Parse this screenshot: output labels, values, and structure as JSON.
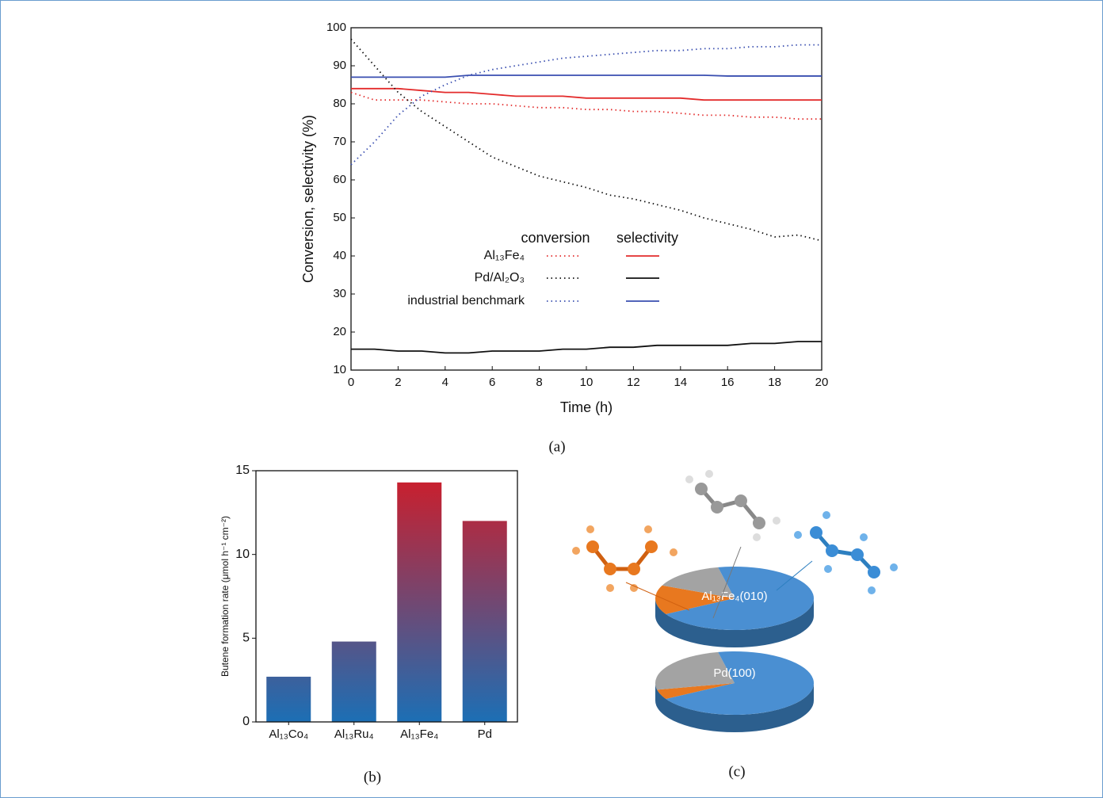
{
  "chart_data": [
    {
      "type": "line",
      "caption": "(a)",
      "x_label": "Time (h)",
      "y_label": "Conversion, selectivity (%)",
      "x": [
        0,
        1,
        2,
        3,
        4,
        5,
        6,
        7,
        8,
        9,
        10,
        11,
        12,
        13,
        14,
        15,
        16,
        17,
        18,
        19,
        20
      ],
      "xlim": [
        0,
        20
      ],
      "xticks": [
        0,
        2,
        4,
        6,
        8,
        10,
        12,
        14,
        16,
        18,
        20
      ],
      "ylim": [
        10,
        100
      ],
      "yticks": [
        10,
        20,
        30,
        40,
        50,
        60,
        70,
        80,
        90,
        100
      ],
      "legend_columns": [
        "conversion",
        "selectivity"
      ],
      "series": [
        {
          "name": "Al₁₃Fe₄",
          "color": "#e32b2b",
          "conversion": [
            83,
            81,
            81,
            81,
            80.5,
            80,
            80,
            79.5,
            79,
            79,
            78.5,
            78.5,
            78,
            78,
            77.5,
            77,
            77,
            76.5,
            76.5,
            76,
            76
          ],
          "selectivity": [
            84,
            84,
            84,
            83.5,
            83,
            83,
            82.5,
            82,
            82,
            82,
            81.5,
            81.5,
            81.5,
            81.5,
            81.5,
            81,
            81,
            81,
            81,
            81,
            81
          ]
        },
        {
          "name": "Pd/Al₂O₃",
          "color": "#111111",
          "conversion": [
            97,
            90,
            83,
            78,
            74,
            70,
            66,
            63.5,
            61,
            59.5,
            58,
            56,
            55,
            53.5,
            52,
            50,
            48.5,
            47,
            45,
            45.5,
            44
          ],
          "selectivity": [
            15.5,
            15.5,
            15,
            15,
            14.5,
            14.5,
            15,
            15,
            15,
            15.5,
            15.5,
            16,
            16,
            16.5,
            16.5,
            16.5,
            16.5,
            17,
            17,
            17.5,
            17.5
          ]
        },
        {
          "name": "industrial benchmark",
          "color": "#3a4fb0",
          "conversion": [
            64,
            70,
            77,
            82,
            85,
            87.5,
            89,
            90,
            91,
            92,
            92.5,
            93,
            93.5,
            94,
            94,
            94.5,
            94.5,
            95,
            95,
            95.5,
            95.5
          ],
          "selectivity": [
            87,
            87,
            87,
            87,
            87,
            87.5,
            87.5,
            87.5,
            87.5,
            87.5,
            87.5,
            87.5,
            87.5,
            87.5,
            87.5,
            87.5,
            87.3,
            87.3,
            87.3,
            87.3,
            87.3
          ]
        }
      ]
    },
    {
      "type": "bar",
      "caption": "(b)",
      "y_label": "Butene formation rate (μmol h⁻¹ cm⁻²)",
      "categories": [
        "Al₁₃Co₄",
        "Al₁₃Ru₄",
        "Al₁₃Fe₄",
        "Pd"
      ],
      "values": [
        2.7,
        4.8,
        14.3,
        12.0
      ],
      "colors": [
        "#1c6fb5",
        "#d01c28"
      ],
      "ylim": [
        0,
        15
      ],
      "yticks": [
        0,
        5,
        10,
        15
      ]
    },
    {
      "type": "pie",
      "caption": "(c)",
      "colors": [
        "#e8781f",
        "#a3a3a3",
        "#4a8fd2"
      ],
      "pies": [
        {
          "label": "Al₁₃Fe₄(010)",
          "values": [
            15,
            15,
            70
          ]
        },
        {
          "label": "Pd(100)",
          "values": [
            5,
            25,
            70
          ]
        }
      ]
    }
  ]
}
